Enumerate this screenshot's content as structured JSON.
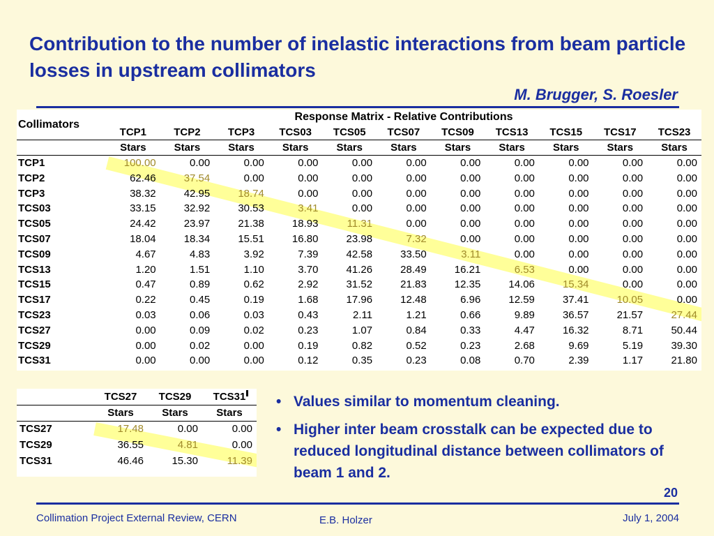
{
  "title": "Contribution to the number of inelastic interactions from beam particle losses in upstream collimators",
  "authors": "M. Brugger, S. Roesler",
  "main_table": {
    "caption": "Response Matrix - Relative Contributions",
    "row_header": "Collimators",
    "columns": [
      "TCP1",
      "TCP2",
      "TCP3",
      "TCS03",
      "TCS05",
      "TCS07",
      "TCS09",
      "TCS13",
      "TCS15",
      "TCS17",
      "TCS23"
    ],
    "unit": "Stars",
    "rows": [
      {
        "label": "TCP1",
        "values": [
          "100.00",
          "0.00",
          "0.00",
          "0.00",
          "0.00",
          "0.00",
          "0.00",
          "0.00",
          "0.00",
          "0.00",
          "0.00"
        ]
      },
      {
        "label": "TCP2",
        "values": [
          "62.46",
          "37.54",
          "0.00",
          "0.00",
          "0.00",
          "0.00",
          "0.00",
          "0.00",
          "0.00",
          "0.00",
          "0.00"
        ]
      },
      {
        "label": "TCP3",
        "values": [
          "38.32",
          "42.95",
          "18.74",
          "0.00",
          "0.00",
          "0.00",
          "0.00",
          "0.00",
          "0.00",
          "0.00",
          "0.00"
        ]
      },
      {
        "label": "TCS03",
        "values": [
          "33.15",
          "32.92",
          "30.53",
          "3.41",
          "0.00",
          "0.00",
          "0.00",
          "0.00",
          "0.00",
          "0.00",
          "0.00"
        ]
      },
      {
        "label": "TCS05",
        "values": [
          "24.42",
          "23.97",
          "21.38",
          "18.93",
          "11.31",
          "0.00",
          "0.00",
          "0.00",
          "0.00",
          "0.00",
          "0.00"
        ]
      },
      {
        "label": "TCS07",
        "values": [
          "18.04",
          "18.34",
          "15.51",
          "16.80",
          "23.98",
          "7.32",
          "0.00",
          "0.00",
          "0.00",
          "0.00",
          "0.00"
        ]
      },
      {
        "label": "TCS09",
        "values": [
          "4.67",
          "4.83",
          "3.92",
          "7.39",
          "42.58",
          "33.50",
          "3.11",
          "0.00",
          "0.00",
          "0.00",
          "0.00"
        ]
      },
      {
        "label": "TCS13",
        "values": [
          "1.20",
          "1.51",
          "1.10",
          "3.70",
          "41.26",
          "28.49",
          "16.21",
          "6.53",
          "0.00",
          "0.00",
          "0.00"
        ]
      },
      {
        "label": "TCS15",
        "values": [
          "0.47",
          "0.89",
          "0.62",
          "2.92",
          "31.52",
          "21.83",
          "12.35",
          "14.06",
          "15.34",
          "0.00",
          "0.00"
        ]
      },
      {
        "label": "TCS17",
        "values": [
          "0.22",
          "0.45",
          "0.19",
          "1.68",
          "17.96",
          "12.48",
          "6.96",
          "12.59",
          "37.41",
          "10.05",
          "0.00"
        ]
      },
      {
        "label": "TCS23",
        "values": [
          "0.03",
          "0.06",
          "0.03",
          "0.43",
          "2.11",
          "1.21",
          "0.66",
          "9.89",
          "36.57",
          "21.57",
          "27.44"
        ]
      },
      {
        "label": "TCS27",
        "values": [
          "0.00",
          "0.09",
          "0.02",
          "0.23",
          "1.07",
          "0.84",
          "0.33",
          "4.47",
          "16.32",
          "8.71",
          "50.44"
        ]
      },
      {
        "label": "TCS29",
        "values": [
          "0.00",
          "0.02",
          "0.00",
          "0.19",
          "0.82",
          "0.52",
          "0.23",
          "2.68",
          "9.69",
          "5.19",
          "39.30"
        ]
      },
      {
        "label": "TCS31",
        "values": [
          "0.00",
          "0.00",
          "0.00",
          "0.12",
          "0.35",
          "0.23",
          "0.08",
          "0.70",
          "2.39",
          "1.17",
          "21.80"
        ]
      }
    ]
  },
  "small_table": {
    "columns": [
      "TCS27",
      "TCS29",
      "TCS31"
    ],
    "unit": "Stars",
    "rows": [
      {
        "label": "TCS27",
        "values": [
          "17.48",
          "0.00",
          "0.00"
        ]
      },
      {
        "label": "TCS29",
        "values": [
          "36.55",
          "4.81",
          "0.00"
        ]
      },
      {
        "label": "TCS31",
        "values": [
          "46.46",
          "15.30",
          "11.39"
        ]
      }
    ]
  },
  "bullets": [
    "Values similar to momentum cleaning.",
    "Higher inter beam crosstalk can be expected due to reduced longitudinal distance between collimators of beam 1 and 2."
  ],
  "page_number": "20",
  "footer": {
    "left": "Collimation Project External Review, CERN",
    "center": "E.B. Holzer",
    "right": "July 1, 2004"
  },
  "colors": {
    "title_blue": "#1a2ea0",
    "background": "#fdf9db",
    "highlight": "#ffff99",
    "diagonal_text": "#a08a2a"
  }
}
